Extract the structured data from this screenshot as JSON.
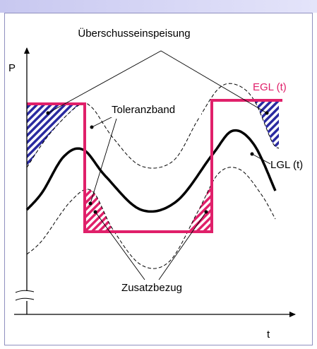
{
  "labels": {
    "top": "Überschusseinspeisung",
    "y_axis": "P",
    "egl": "EGL (t)",
    "band": "Toleranzband",
    "lgl": "LGL (t)",
    "bottom": "Zusatzbezug",
    "x_axis": "t"
  }
}
